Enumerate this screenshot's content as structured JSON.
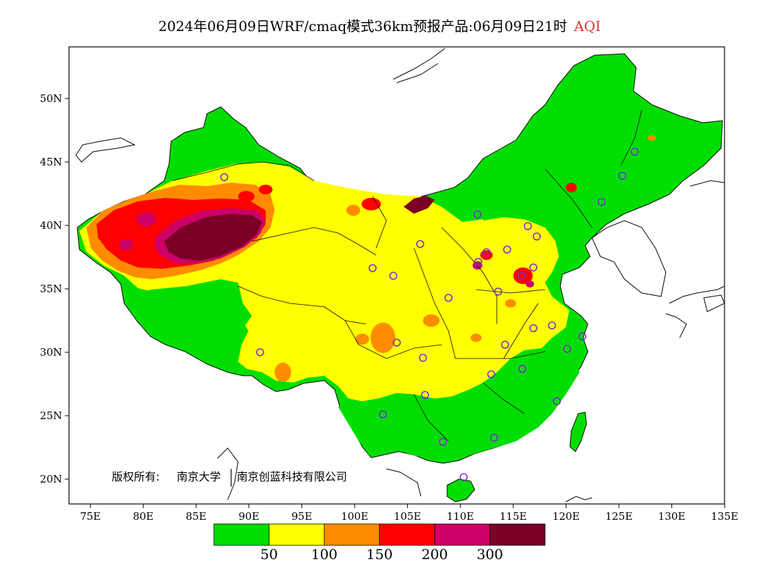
{
  "title": {
    "main": "2024年06月09日WRF/cmaq模式36km预报产品:06月09日21时",
    "variable": "AQI"
  },
  "axes": {
    "lat_labels": [
      "50N",
      "45N",
      "40N",
      "35N",
      "30N",
      "25N",
      "20N"
    ],
    "lon_labels": [
      "75E",
      "80E",
      "85E",
      "90E",
      "95E",
      "100E",
      "105E",
      "110E",
      "115E",
      "120E",
      "125E",
      "130E",
      "135E"
    ]
  },
  "copyright": {
    "prefix": "版权所有:",
    "owner1": "南京大学",
    "owner2": "南京创蓝科技有限公司"
  },
  "legend": {
    "colors": [
      "#00dd00",
      "#ffff00",
      "#ff8c00",
      "#ff0000",
      "#cc0066",
      "#7a0026"
    ],
    "thresholds": [
      "50",
      "100",
      "150",
      "200",
      "300"
    ]
  },
  "colors": {
    "good": "#00dd00",
    "moderate": "#ffff00",
    "usg": "#ff8c00",
    "unhealthy": "#ff0000",
    "very_unhealthy": "#cc0066",
    "hazardous": "#7a0026",
    "station_marker": "#7a30c8"
  }
}
